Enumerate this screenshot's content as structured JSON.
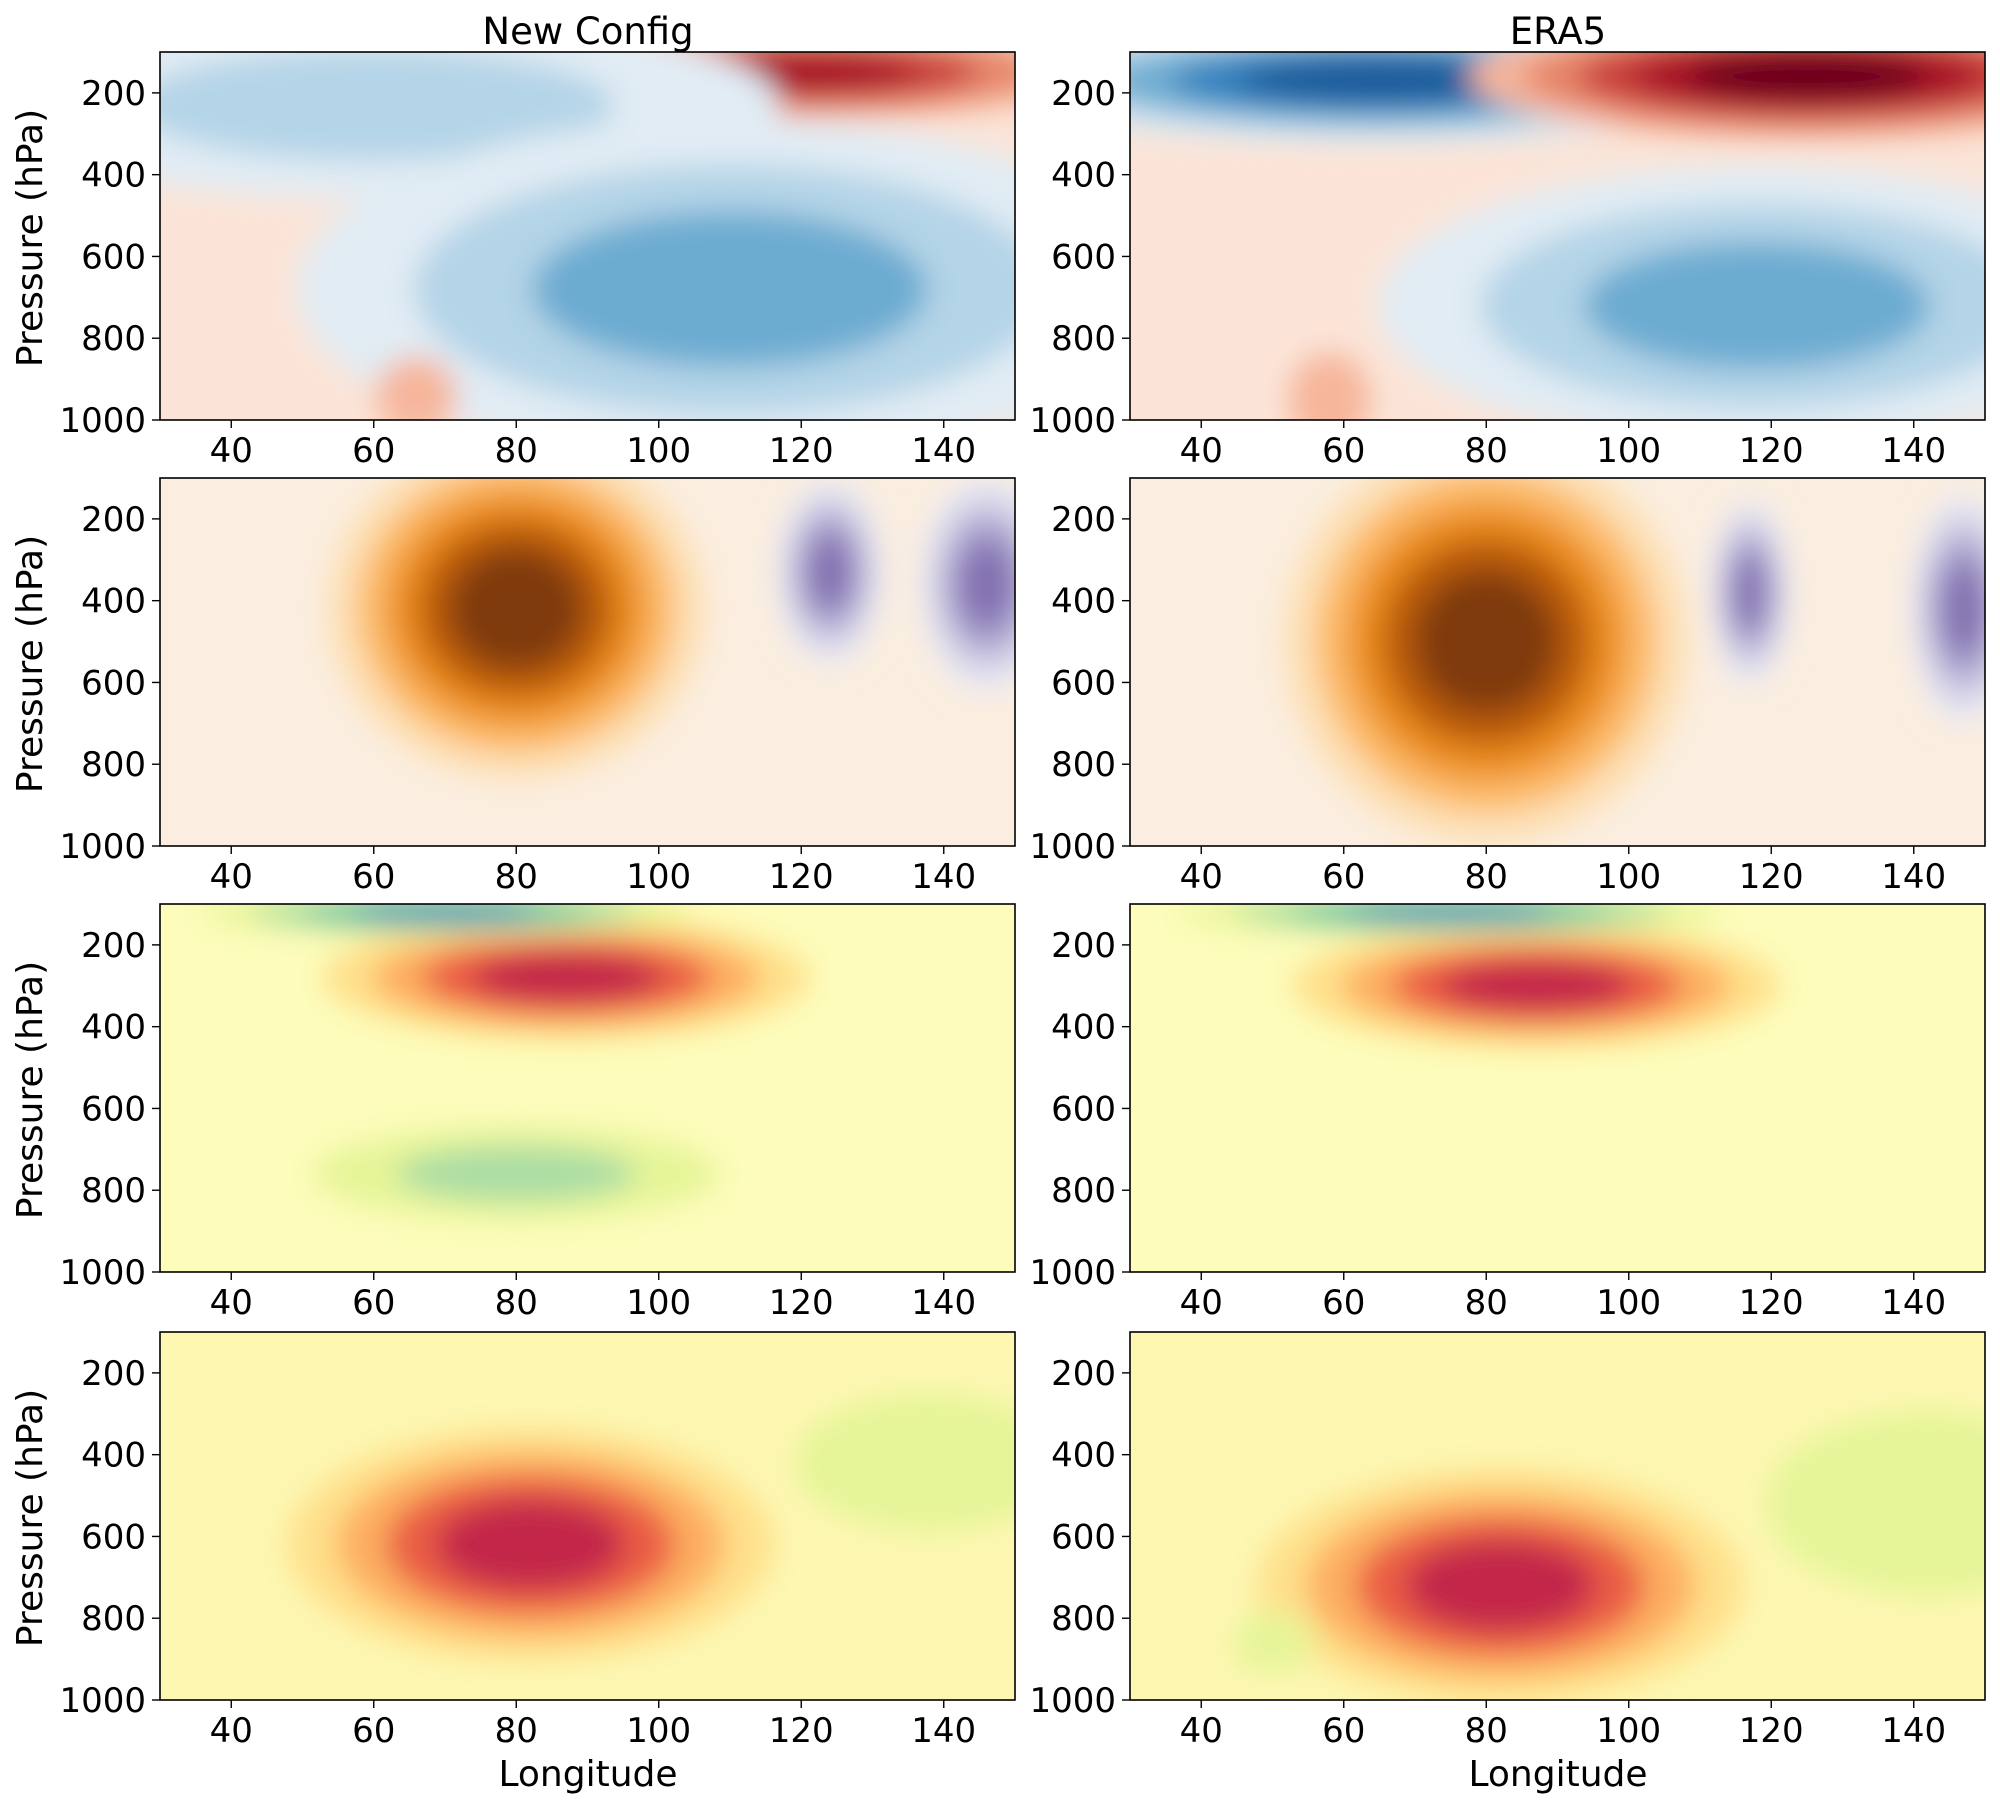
{
  "chart_data": {
    "type": "heatmap",
    "layout": "4 rows x 2 columns of filled-contour panels",
    "columns": [
      "New Config",
      "ERA5"
    ],
    "xlabel": "Longitude",
    "ylabel": "Pressure (hPa)",
    "xlim": [
      30,
      150
    ],
    "ylim": [
      1000,
      100
    ],
    "y_axis_inverted": true,
    "xticks": [
      40,
      60,
      80,
      100,
      120,
      140
    ],
    "yticks": [
      200,
      400,
      600,
      800,
      1000
    ],
    "grid": false,
    "colorbar": false,
    "panels": [
      {
        "row": 0,
        "col": 0,
        "title": "New Config",
        "colormap": "RdBu_r",
        "background": "#fbe4d7",
        "features": [
          {
            "kind": "max",
            "lon": 120,
            "p": 150,
            "lon_radius": 22,
            "p_radius": 60,
            "level": 4
          },
          {
            "kind": "min",
            "lon": 60,
            "p": 230,
            "lon_radius": 30,
            "p_radius": 120,
            "level": -2
          },
          {
            "kind": "min",
            "lon": 110,
            "p": 680,
            "lon_radius": 32,
            "p_radius": 220,
            "level": -3
          },
          {
            "kind": "max",
            "lon": 66,
            "p": 940,
            "lon_radius": 3,
            "p_radius": 50,
            "level": 1
          }
        ]
      },
      {
        "row": 0,
        "col": 1,
        "title": "ERA5",
        "colormap": "RdBu_r",
        "background": "#fbe4d7",
        "features": [
          {
            "kind": "min",
            "lon": 65,
            "p": 170,
            "lon_radius": 30,
            "p_radius": 80,
            "level": -5
          },
          {
            "kind": "max",
            "lon": 125,
            "p": 160,
            "lon_radius": 25,
            "p_radius": 80,
            "level": 5
          },
          {
            "kind": "min",
            "lon": 118,
            "p": 720,
            "lon_radius": 28,
            "p_radius": 180,
            "level": -3
          },
          {
            "kind": "max",
            "lon": 58,
            "p": 950,
            "lon_radius": 3,
            "p_radius": 60,
            "level": 1
          }
        ]
      },
      {
        "row": 1,
        "col": 0,
        "title": "",
        "colormap": "PuOr_r",
        "background": "#fbeee0",
        "features": [
          {
            "kind": "max",
            "lon": 80,
            "p": 420,
            "lon_radius": 14,
            "p_radius": 220,
            "level": 5
          },
          {
            "kind": "min",
            "lon": 124,
            "p": 330,
            "lon_radius": 4,
            "p_radius": 120,
            "level": -4
          },
          {
            "kind": "min",
            "lon": 146,
            "p": 360,
            "lon_radius": 5,
            "p_radius": 140,
            "level": -4
          }
        ]
      },
      {
        "row": 1,
        "col": 1,
        "title": "ERA5",
        "colormap": "PuOr_r",
        "background": "#fbeee0",
        "features": [
          {
            "kind": "max",
            "lon": 80,
            "p": 500,
            "lon_radius": 15,
            "p_radius": 260,
            "level": 5
          },
          {
            "kind": "min",
            "lon": 117,
            "p": 380,
            "lon_radius": 3,
            "p_radius": 120,
            "level": -4
          },
          {
            "kind": "min",
            "lon": 147,
            "p": 420,
            "lon_radius": 4,
            "p_radius": 150,
            "level": -4
          }
        ]
      },
      {
        "row": 2,
        "col": 0,
        "title": "",
        "colormap": "Spectral_r",
        "background": "#fdfcbb",
        "features": [
          {
            "kind": "max",
            "lon": 87,
            "p": 280,
            "lon_radius": 18,
            "p_radius": 80,
            "level": 4
          },
          {
            "kind": "min",
            "lon": 80,
            "p": 760,
            "lon_radius": 15,
            "p_radius": 60,
            "level": -2
          },
          {
            "kind": "min",
            "lon": 70,
            "p": 120,
            "lon_radius": 18,
            "p_radius": 30,
            "level": -4
          }
        ]
      },
      {
        "row": 2,
        "col": 1,
        "title": "ERA5",
        "colormap": "Spectral_r",
        "background": "#fdfcbb",
        "features": [
          {
            "kind": "max",
            "lon": 87,
            "p": 300,
            "lon_radius": 18,
            "p_radius": 80,
            "level": 4
          },
          {
            "kind": "min",
            "lon": 75,
            "p": 120,
            "lon_radius": 20,
            "p_radius": 30,
            "level": -4
          }
        ]
      },
      {
        "row": 3,
        "col": 0,
        "title": "",
        "colormap": "Spectral_r",
        "background": "#fdf7b2",
        "features": [
          {
            "kind": "max",
            "lon": 82,
            "p": 620,
            "lon_radius": 18,
            "p_radius": 150,
            "level": 4
          },
          {
            "kind": "min",
            "lon": 138,
            "p": 420,
            "lon_radius": 10,
            "p_radius": 90,
            "level": -1
          }
        ]
      },
      {
        "row": 3,
        "col": 1,
        "title": "ERA5",
        "colormap": "Spectral_r",
        "background": "#fdf7b2",
        "features": [
          {
            "kind": "max",
            "lon": 82,
            "p": 720,
            "lon_radius": 18,
            "p_radius": 150,
            "level": 4
          },
          {
            "kind": "min",
            "lon": 142,
            "p": 520,
            "lon_radius": 12,
            "p_radius": 120,
            "level": -1
          },
          {
            "kind": "min",
            "lon": 50,
            "p": 860,
            "lon_radius": 3,
            "p_radius": 40,
            "level": -1
          }
        ]
      }
    ]
  }
}
